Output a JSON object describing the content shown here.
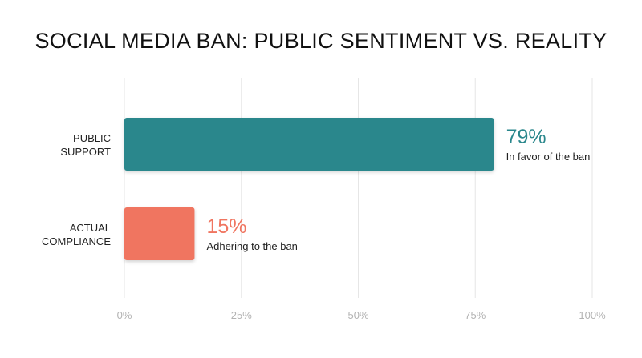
{
  "chart_data": {
    "type": "bar",
    "orientation": "horizontal",
    "title": "SOCIAL MEDIA BAN: PUBLIC SENTIMENT VS. REALITY",
    "categories": [
      {
        "lines": [
          "PUBLIC",
          "SUPPORT"
        ]
      },
      {
        "lines": [
          "ACTUAL",
          "COMPLIANCE"
        ]
      }
    ],
    "values": [
      79,
      15
    ],
    "data_labels": [
      "79%",
      "15%"
    ],
    "annotations": [
      "In favor of the ban",
      "Adhering to the ban"
    ],
    "colors": [
      "#2a878c",
      "#f07560"
    ],
    "xlim": [
      0,
      100
    ],
    "xticks": [
      0,
      25,
      50,
      75,
      100
    ],
    "xtick_labels": [
      "0%",
      "25%",
      "50%",
      "75%",
      "100%"
    ],
    "grid": true,
    "legend": "none"
  }
}
